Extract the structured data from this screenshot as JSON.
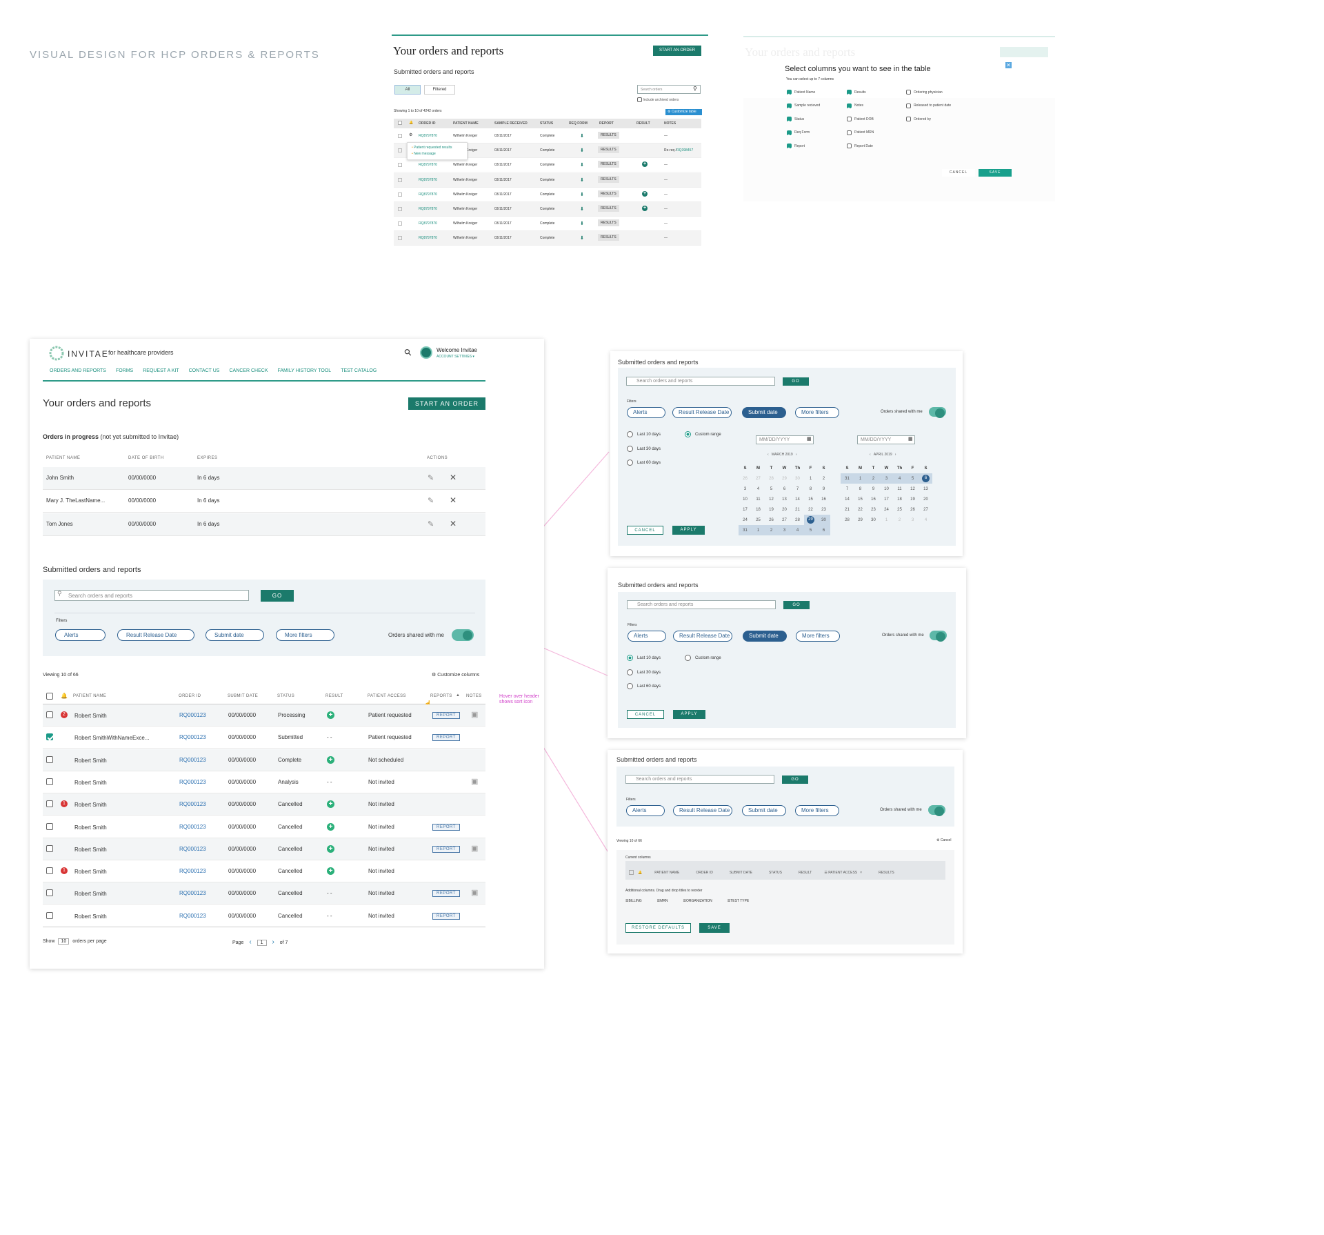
{
  "heading": "VISUAL DESIGN FOR HCP ORDERS & REPORTS",
  "mock1": {
    "title": "Your orders and reports",
    "start": "START AN ORDER",
    "sub": "Submitted orders and reports",
    "tab_all": "All",
    "tab_filtered": "Filtered",
    "search_ph": "Search orders",
    "archived": "Include archived orders",
    "showing": "Showing 1 to 10 of 4242 orders",
    "customize": "Customize table",
    "cols": [
      "ORDER ID",
      "PATIENT NAME",
      "SAMPLE RECEIVED",
      "STATUS",
      "REQ FORM",
      "REPORT",
      "RESULT",
      "NOTES"
    ],
    "popup1": "Patient requested results",
    "popup2": "New message",
    "notes_link": "Re-req /",
    "notes_id": "RQ398457",
    "rows": [
      [
        "RQ8797870",
        "Wilhelm Kreiger",
        "03/11/2017",
        "Complete",
        "RESULTS",
        "—"
      ],
      [
        "RQ8797870",
        "Wilhelm Kreiger",
        "03/11/2017",
        "Complete",
        "RESULTS",
        ""
      ],
      [
        "RQ8797870",
        "Wilhelm Kreiger",
        "03/11/2017",
        "Complete",
        "RESULTS",
        "—"
      ],
      [
        "RQ8797870",
        "Wilhelm Kreiger",
        "03/11/2017",
        "Complete",
        "RESULTS",
        "—"
      ],
      [
        "RQ8797870",
        "Wilhelm Kreiger",
        "03/11/2017",
        "Complete",
        "RESULTS",
        "—"
      ],
      [
        "RQ8797870",
        "Wilhelm Kreiger",
        "03/11/2017",
        "Complete",
        "RESULTS",
        "—"
      ],
      [
        "RQ8797870",
        "Wilhelm Kreiger",
        "03/11/2017",
        "Complete",
        "RESULTS",
        "—"
      ],
      [
        "RQ8797870",
        "Wilhelm Kreiger",
        "03/11/2017",
        "Complete",
        "RESULTS",
        "—"
      ]
    ]
  },
  "mock2": {
    "bg_title": "Your orders and reports",
    "title": "Select columns you want to see in the table",
    "sub": "You can select up to 7 columns",
    "cancel": "CANCEL",
    "save": "SAVE",
    "col1": [
      [
        "Patient Name",
        true
      ],
      [
        "Sample recieved",
        true
      ],
      [
        "Status",
        true
      ],
      [
        "Req Form",
        true
      ],
      [
        "Report",
        true
      ]
    ],
    "col2": [
      [
        "Results",
        true
      ],
      [
        "Notes",
        true
      ],
      [
        "Patient DOB",
        false
      ],
      [
        "Patient MRN",
        false
      ],
      [
        "Report Date",
        false
      ]
    ],
    "col3": [
      [
        "Ordering physician",
        false
      ],
      [
        "Released to patient date",
        false
      ],
      [
        "Ordered by",
        false
      ]
    ]
  },
  "main": {
    "brand": "INVITAE",
    "brand_sub": "for healthcare providers",
    "welcome": "Welcome Invitae",
    "account": "ACCOUNT SETTINGS ▾",
    "nav": [
      "ORDERS AND REPORTS",
      "FORMS",
      "REQUEST A KIT",
      "CONTACT US",
      "CANCER CHECK",
      "FAMILY HISTORY TOOL",
      "TEST CATALOG"
    ],
    "title": "Your orders and reports",
    "start": "START AN ORDER",
    "progress_title": "Orders in progress",
    "progress_note": "(not yet submitted to Invitae)",
    "progress_cols": [
      "PATIENT NAME",
      "DATE OF BIRTH",
      "EXPIRES",
      "ACTIONS"
    ],
    "progress_rows": [
      [
        "John Smith",
        "00/00/0000",
        "In 6 days"
      ],
      [
        "Mary J. TheLastName...",
        "00/00/0000",
        "In 6 days"
      ],
      [
        "Tom Jones",
        "00/00/0000",
        "In 6 days"
      ]
    ],
    "submitted_title": "Submitted orders and reports",
    "search_ph": "Search orders and reports",
    "go": "GO",
    "filters": "Filters",
    "filter_pills": [
      "Alerts",
      "Result Release Date",
      "Submit date",
      "More filters"
    ],
    "shared": "Orders shared with me",
    "viewing": "Viewing 10 of 66",
    "customize": "Customize columns",
    "cols": [
      "PATIENT NAME",
      "ORDER ID",
      "SUBMIT DATE",
      "STATUS",
      "RESULT",
      "PATIENT ACCESS",
      "REPORTS",
      "NOTES"
    ],
    "annot": "Hover over header shows sort icon",
    "rows": [
      {
        "alert": "2",
        "checked": false,
        "name": "Robert Smith",
        "id": "RQ000123",
        "date": "00/00/0000",
        "status": "Processing",
        "result": "plus",
        "access": "Patient requested",
        "report": "REPORT",
        "note": true
      },
      {
        "alert": "",
        "checked": true,
        "name": "Robert SmithWithNameExce...",
        "id": "RQ000123",
        "date": "00/00/0000",
        "status": "Submitted",
        "result": "- -",
        "access": "Patient requested",
        "report": "REPORT",
        "note": false
      },
      {
        "alert": "",
        "checked": false,
        "name": "Robert Smith",
        "id": "RQ000123",
        "date": "00/00/0000",
        "status": "Complete",
        "result": "plus",
        "access": "Not scheduled",
        "report": "",
        "note": false
      },
      {
        "alert": "",
        "checked": false,
        "name": "Robert Smith",
        "id": "RQ000123",
        "date": "00/00/0000",
        "status": "Analysis",
        "result": "- -",
        "access": "Not invited",
        "report": "",
        "note": true
      },
      {
        "alert": "1",
        "checked": false,
        "name": "Robert Smith",
        "id": "RQ000123",
        "date": "00/00/0000",
        "status": "Cancelled",
        "result": "plus",
        "access": "Not invited",
        "report": "",
        "note": false
      },
      {
        "alert": "",
        "checked": false,
        "name": "Robert Smith",
        "id": "RQ000123",
        "date": "00/00/0000",
        "status": "Cancelled",
        "result": "plus",
        "access": "Not invited",
        "report": "REPORT",
        "note": false
      },
      {
        "alert": "",
        "checked": false,
        "name": "Robert Smith",
        "id": "RQ000123",
        "date": "00/00/0000",
        "status": "Cancelled",
        "result": "plus",
        "access": "Not invited",
        "report": "REPORT",
        "note": true
      },
      {
        "alert": "1",
        "checked": false,
        "name": "Robert Smith",
        "id": "RQ000123",
        "date": "00/00/0000",
        "status": "Cancelled",
        "result": "plus",
        "access": "Not invited",
        "report": "",
        "note": false
      },
      {
        "alert": "",
        "checked": false,
        "name": "Robert Smith",
        "id": "RQ000123",
        "date": "00/00/0000",
        "status": "Cancelled",
        "result": "- -",
        "access": "Not invited",
        "report": "REPORT",
        "note": true
      },
      {
        "alert": "",
        "checked": false,
        "name": "Robert Smith",
        "id": "RQ000123",
        "date": "00/00/0000",
        "status": "Cancelled",
        "result": "- -",
        "access": "Not invited",
        "report": "REPORT",
        "note": false
      }
    ],
    "show": "Show",
    "per_page_val": "10",
    "per_page": "orders per page",
    "page": "Page",
    "page_val": "1",
    "of": "of 7"
  },
  "panelA": {
    "title": "Submitted orders and reports",
    "search_ph": "Search orders and reports",
    "go": "GO",
    "filters": "Filters",
    "pills": [
      "Alerts",
      "Result Release Date",
      "Submit date",
      "More filters"
    ],
    "shared": "Orders shared with me",
    "radios": [
      "Last 10 days",
      "Last 30 days",
      "Last 60 days"
    ],
    "custom": "Custom range",
    "date_ph": "MM/DD/YYYY",
    "m1": "MARCH 2019",
    "m2": "APRIL 2019",
    "dow": [
      "S",
      "M",
      "T",
      "W",
      "Th",
      "F",
      "S"
    ],
    "cancel": "CANCEL",
    "apply": "APPLY",
    "cal1": [
      [
        "26",
        "27",
        "28",
        "29",
        "30",
        "1",
        "2"
      ],
      [
        "3",
        "4",
        "5",
        "6",
        "7",
        "8",
        "9"
      ],
      [
        "10",
        "11",
        "12",
        "13",
        "14",
        "15",
        "16"
      ],
      [
        "17",
        "18",
        "19",
        "20",
        "21",
        "22",
        "23"
      ],
      [
        "24",
        "25",
        "26",
        "27",
        "28",
        "29",
        "30"
      ],
      [
        "31",
        "1",
        "2",
        "3",
        "4",
        "5",
        "6"
      ]
    ],
    "cal2": [
      [
        "31",
        "1",
        "2",
        "3",
        "4",
        "5",
        "6"
      ],
      [
        "7",
        "8",
        "9",
        "10",
        "11",
        "12",
        "13"
      ],
      [
        "14",
        "15",
        "16",
        "17",
        "18",
        "19",
        "20"
      ],
      [
        "21",
        "22",
        "23",
        "24",
        "25",
        "26",
        "27"
      ],
      [
        "28",
        "29",
        "30",
        "1",
        "2",
        "3",
        "4"
      ]
    ]
  },
  "panelB": {
    "title": "Submitted orders and reports",
    "search_ph": "Search orders and reports",
    "go": "GO",
    "filters": "Filters",
    "pills": [
      "Alerts",
      "Result Release Date",
      "Submit date",
      "More filters"
    ],
    "shared": "Orders shared with me",
    "radios": [
      "Last 10 days",
      "Last 30 days",
      "Last 60 days"
    ],
    "custom": "Custom range",
    "cancel": "CANCEL",
    "apply": "APPLY"
  },
  "panelC": {
    "title": "Submitted orders and reports",
    "search_ph": "Search orders and reports",
    "go": "GO",
    "filters": "Filters",
    "pills": [
      "Alerts",
      "Result Release Date",
      "Submit date",
      "More filters"
    ],
    "shared": "Orders shared with me",
    "viewing": "Viewing 10 of 66",
    "cancel": "Cancel",
    "current": "Current columns",
    "cols": [
      "PATIENT NAME",
      "ORDER ID",
      "SUBMIT DATE",
      "STATUS",
      "RESULT",
      "PATIENT ACCESS",
      "RESULTS"
    ],
    "additional": "Additional columns. Drag and drop titles to reorder",
    "extra": [
      "BILLING",
      "MRN",
      "ORGANIZATION",
      "TEST TYPE"
    ],
    "restore": "RESTORE DEFAULTS",
    "save": "SAVE"
  }
}
